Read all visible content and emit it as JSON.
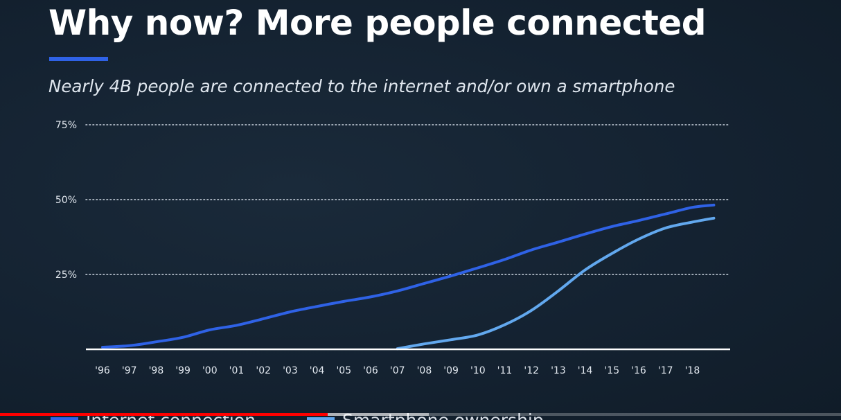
{
  "slide": {
    "title": "Why now? More people connected",
    "subtitle": "Nearly 4B people are connected to the internet and/or own a smartphone"
  },
  "colors": {
    "background": "#13212f",
    "accent": "#2f62e6",
    "internet_series": "#2f62e6",
    "smartphone_series": "#62a8ee",
    "gridline": "#cfd8e3",
    "baseline": "#ffffff"
  },
  "video": {
    "progress": 0.39,
    "buffered_to": 0.51
  },
  "chart_data": {
    "type": "line",
    "title": "",
    "xlabel": "",
    "ylabel": "",
    "categories": [
      "'96",
      "'97",
      "'98",
      "'99",
      "'00",
      "'01",
      "'02",
      "'03",
      "'04",
      "'05",
      "'06",
      "'07",
      "'08",
      "'09",
      "'10",
      "'11",
      "'12",
      "'13",
      "'14",
      "'15",
      "'16",
      "'17",
      "'18"
    ],
    "ylim": [
      0,
      75
    ],
    "yticks": [
      25,
      50,
      75
    ],
    "ytick_labels": [
      "25%",
      "50%",
      "75%"
    ],
    "grid": "dotted horizontal",
    "legend_position": "bottom",
    "series": [
      {
        "name": "Internet connection",
        "x": [
          1996,
          1997,
          1998,
          1999,
          2000,
          2001,
          2002,
          2003,
          2004,
          2005,
          2006,
          2007,
          2008,
          2009,
          2010,
          2011,
          2012,
          2013,
          2014,
          2015,
          2016,
          2017,
          2018,
          2018.8
        ],
        "values": [
          0.7,
          1.2,
          2.5,
          4.0,
          6.5,
          8.0,
          10.2,
          12.5,
          14.3,
          16.0,
          17.5,
          19.5,
          22.0,
          24.5,
          27.2,
          30.0,
          33.2,
          35.8,
          38.5,
          41.0,
          43.0,
          45.2,
          47.4,
          48.2
        ]
      },
      {
        "name": "Smartphone ownership",
        "x": [
          2007,
          2008,
          2009,
          2010,
          2011,
          2012,
          2013,
          2014,
          2015,
          2016,
          2017,
          2018,
          2018.8
        ],
        "values": [
          0.2,
          1.8,
          3.2,
          4.8,
          8.2,
          13.0,
          19.5,
          26.5,
          32.0,
          36.8,
          40.5,
          42.5,
          43.8
        ]
      }
    ]
  }
}
